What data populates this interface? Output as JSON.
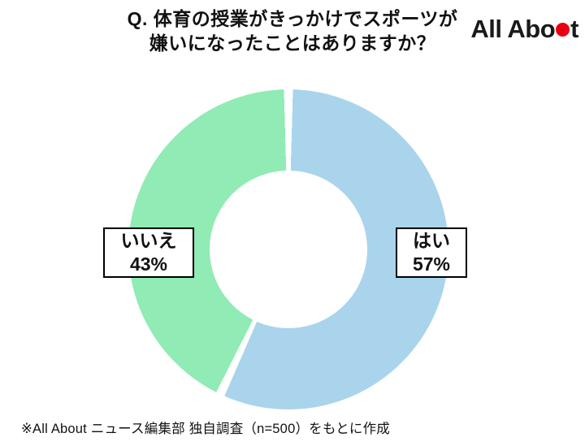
{
  "header": {
    "title_line1": "Q. 体育の授業がきっかけでスポーツが",
    "title_line2": "嫌いになったことはありますか？",
    "logo": {
      "name": "All About",
      "text_pre": "All Abo",
      "text_post": "t",
      "dot_color": "#e60012"
    }
  },
  "chart_data": {
    "type": "pie",
    "donut": true,
    "title": "Q. 体育の授業がきっかけでスポーツが嫌いになったことはありますか？",
    "categories": [
      "はい",
      "いいえ"
    ],
    "values": [
      57,
      43
    ],
    "unit": "%",
    "colors": [
      "#a9d4ec",
      "#90ebb4"
    ],
    "start_angle_deg": 0,
    "direction": "clockwise",
    "legend_position": "none",
    "labels": [
      {
        "text": "はい",
        "value": "57%"
      },
      {
        "text": "いいえ",
        "value": "43%"
      }
    ]
  },
  "footer": {
    "note": "※All About ニュース編集部 独自調査（n=500）をもとに作成"
  }
}
